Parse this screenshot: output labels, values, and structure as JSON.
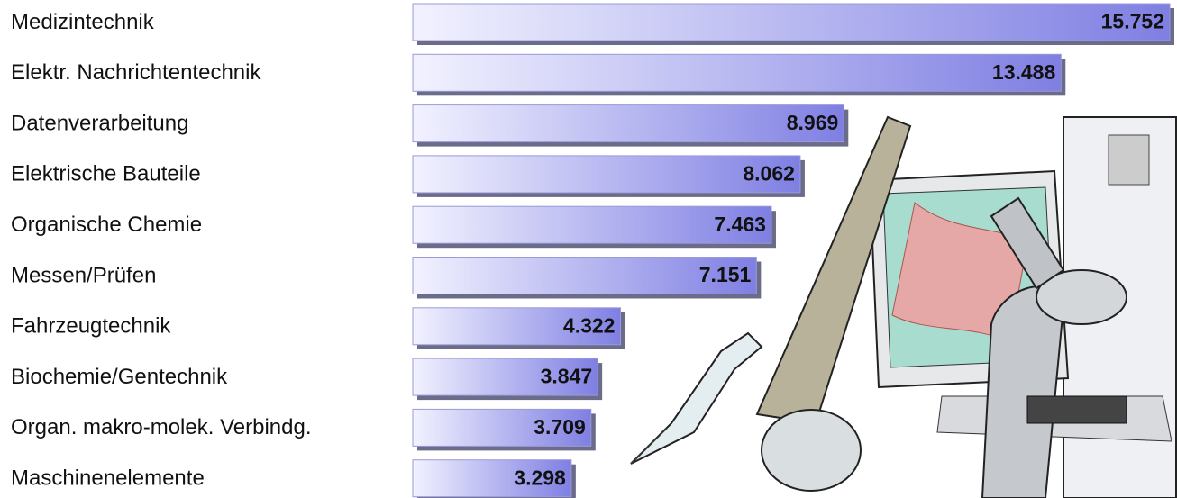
{
  "chart_data": {
    "type": "bar",
    "orientation": "horizontal",
    "categories": [
      "Medizintechnik",
      "Elektr. Nachrichtentechnik",
      "Datenverarbeitung",
      "Elektrische Bauteile",
      "Organische Chemie",
      "Messen/Prüfen",
      "Fahrzeugtechnik",
      "Biochemie/Gentechnik",
      "Organ. makro-molek. Verbindg.",
      "Maschinenelemente"
    ],
    "values": [
      15752,
      13488,
      8969,
      8062,
      7463,
      7151,
      4322,
      3847,
      3709,
      3298
    ],
    "value_labels": [
      "15.752",
      "13.488",
      "8.969",
      "8.062",
      "7.463",
      "7.151",
      "4.322",
      "3.847",
      "3.709",
      "3.298"
    ],
    "color": "#7f7fe3"
  }
}
